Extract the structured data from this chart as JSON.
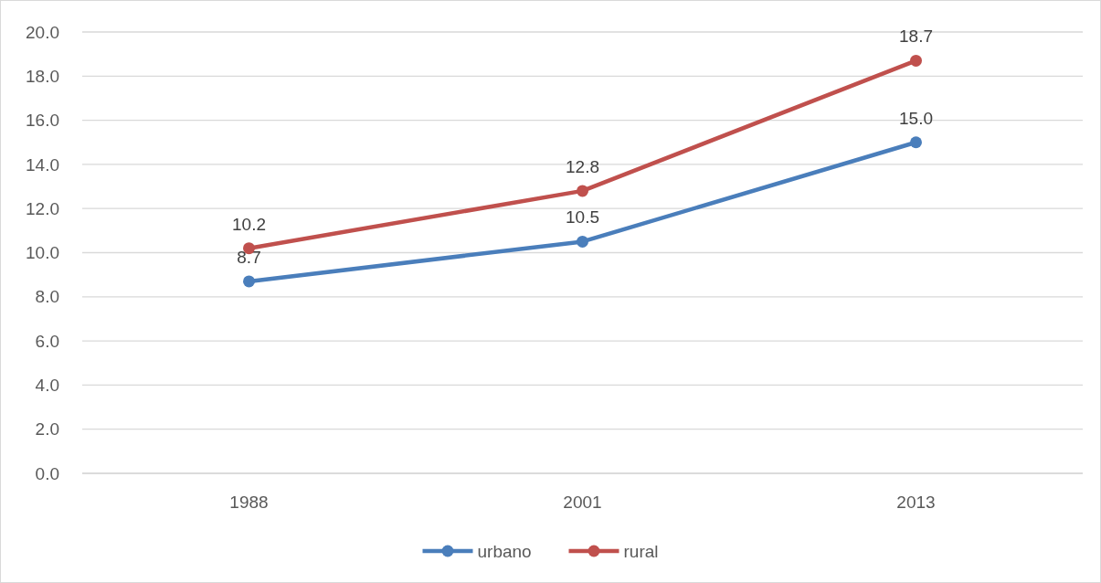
{
  "chart_data": {
    "type": "line",
    "categories": [
      "1988",
      "2001",
      "2013"
    ],
    "series": [
      {
        "name": "urbano",
        "color": "#4a7ebb",
        "values": [
          8.7,
          10.5,
          15.0
        ],
        "value_labels": [
          "8.7",
          "10.5",
          "15.0"
        ]
      },
      {
        "name": "rural",
        "color": "#c0504d",
        "values": [
          10.2,
          12.8,
          18.7
        ],
        "value_labels": [
          "10.2",
          "12.8",
          "18.7"
        ]
      }
    ],
    "ylim": [
      0,
      20
    ],
    "yticks": [
      {
        "value": 0,
        "label": "0.0"
      },
      {
        "value": 2,
        "label": "2.0"
      },
      {
        "value": 4,
        "label": "4.0"
      },
      {
        "value": 6,
        "label": "6.0"
      },
      {
        "value": 8,
        "label": "8.0"
      },
      {
        "value": 10,
        "label": "10.0"
      },
      {
        "value": 12,
        "label": "12.0"
      },
      {
        "value": 14,
        "label": "14.0"
      },
      {
        "value": 16,
        "label": "16.0"
      },
      {
        "value": 18,
        "label": "18.0"
      },
      {
        "value": 20,
        "label": "20.0"
      }
    ],
    "grid": "y",
    "legend": "bottom",
    "marker": "circle",
    "line_style": "solid"
  }
}
